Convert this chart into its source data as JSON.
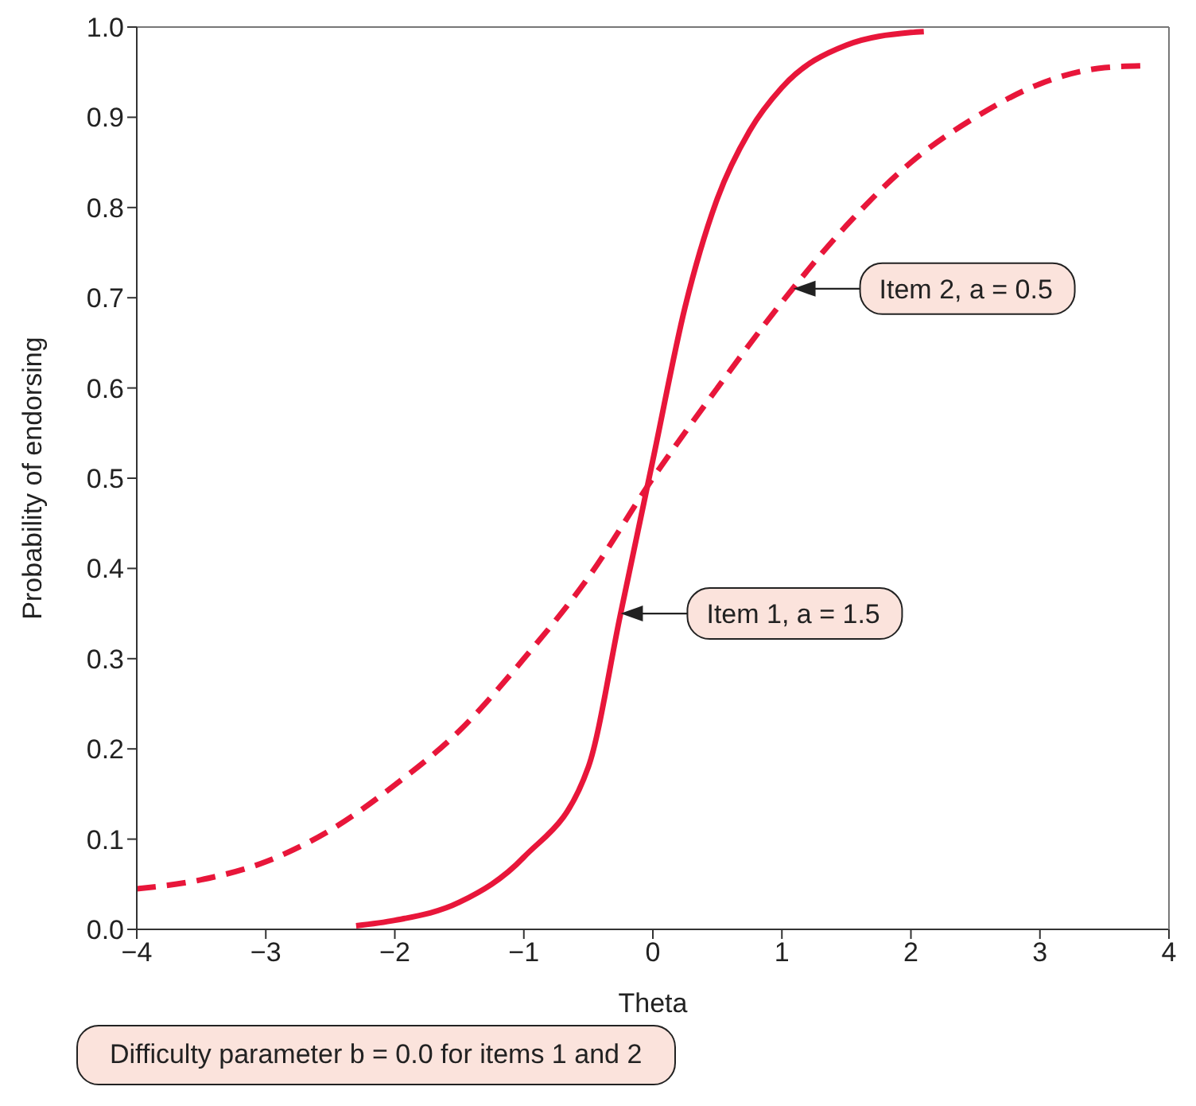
{
  "chart_data": {
    "type": "line",
    "xlabel": "Theta",
    "ylabel": "Probability of endorsing",
    "xlim": [
      -4,
      4
    ],
    "xticks": [
      {
        "value": -4,
        "label": "−4"
      },
      {
        "value": -3,
        "label": "−3"
      },
      {
        "value": -2,
        "label": "−2"
      },
      {
        "value": -1,
        "label": "−1"
      },
      0,
      1,
      2,
      3,
      4
    ],
    "ylim": [
      0,
      1
    ],
    "yticks": [
      {
        "value": 0,
        "label": "0.0"
      },
      0.1,
      0.2,
      0.3,
      0.4,
      0.5,
      0.6,
      0.7,
      0.8,
      0.9,
      {
        "value": 1,
        "label": "1.0"
      }
    ],
    "grid": false,
    "legend": false,
    "marker": "none",
    "series": [
      {
        "name": "Item 1, a = 1.5",
        "color": "#e8163a",
        "line_style": "solid",
        "x": [
          -2.3,
          -2,
          -1.5,
          -1,
          -0.5,
          -0.25,
          0,
          0.25,
          0.5,
          0.75,
          1,
          1.5,
          2,
          2.1
        ],
        "values": [
          0.004,
          0.01,
          0.03,
          0.08,
          0.18,
          0.35,
          0.52,
          0.69,
          0.81,
          0.885,
          0.933,
          0.98,
          0.994,
          0.995
        ]
      },
      {
        "name": "Item 2, a = 0.5",
        "color": "#e8163a",
        "line_style": "dashed",
        "x": [
          -4,
          -3.5,
          -3,
          -2.5,
          -2,
          -1.5,
          -1,
          -0.5,
          0,
          0.5,
          1,
          1.5,
          2,
          2.5,
          3,
          3.5,
          3.8
        ],
        "values": [
          0.045,
          0.055,
          0.075,
          0.11,
          0.16,
          0.22,
          0.3,
          0.39,
          0.5,
          0.6,
          0.695,
          0.78,
          0.85,
          0.9,
          0.937,
          0.955,
          0.957
        ]
      }
    ],
    "annotations": [
      "Difficulty parameter b = 0.0 for items 1 and 2"
    ]
  }
}
